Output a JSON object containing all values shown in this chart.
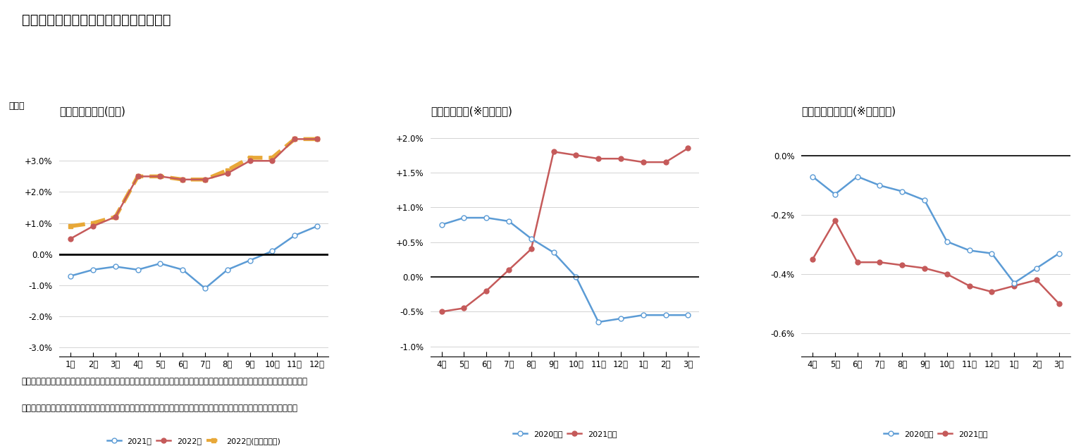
{
  "title": "図表５　年金額改定に関係する経済動向",
  "chart1": {
    "subtitle": "消費者物価指数(総合)",
    "ylabel": "前年比",
    "x_labels": [
      "1月",
      "2月",
      "3月",
      "4月",
      "5月",
      "6月",
      "7月",
      "8月",
      "9月",
      "10月",
      "11月",
      "12月"
    ],
    "ytick_labels": [
      "-3.0%",
      "-2.0%",
      "-1.0%",
      "0.0%",
      "+1.0%",
      "+2.0%",
      "+3.0%"
    ],
    "yticks": [
      -3.0,
      -2.0,
      -1.0,
      0.0,
      1.0,
      2.0,
      3.0
    ],
    "ylim_lo": -3.3,
    "ylim_hi": 4.3,
    "series_2021": [
      -0.7,
      -0.5,
      -0.4,
      -0.5,
      -0.3,
      -0.5,
      -1.1,
      -0.5,
      -0.2,
      0.1,
      0.6,
      0.9
    ],
    "series_2022": [
      0.5,
      0.9,
      1.2,
      2.5,
      2.5,
      2.4,
      2.4,
      2.6,
      3.0,
      3.0,
      3.7,
      3.7
    ],
    "series_forecast_x": [
      0,
      1,
      2,
      3,
      4,
      5,
      6,
      7,
      8,
      9,
      10,
      11
    ],
    "series_forecast_y": [
      0.9,
      1.0,
      1.2,
      2.5,
      2.5,
      2.4,
      2.4,
      2.7,
      3.1,
      3.1,
      3.7,
      3.7
    ],
    "color_2021": "#5B9BD5",
    "color_2022": "#C55A5A",
    "color_forecast": "#E8A838",
    "legend": [
      "2021年",
      "2022年",
      "2022年(弊社見通し)"
    ]
  },
  "chart2": {
    "subtitle": "標準報酬月額(※共済以外)",
    "x_labels": [
      "4月",
      "5月",
      "6月",
      "7月",
      "8月",
      "9月",
      "10月",
      "11月",
      "12月",
      "1月",
      "2月",
      "3月"
    ],
    "ytick_labels": [
      "-1.0%",
      "-0.5%",
      "0.0%",
      "+0.5%",
      "+1.0%",
      "+1.5%",
      "+2.0%"
    ],
    "yticks": [
      -1.0,
      -0.5,
      0.0,
      0.5,
      1.0,
      1.5,
      2.0
    ],
    "ylim_lo": -1.15,
    "ylim_hi": 2.25,
    "series_2020": [
      0.75,
      0.85,
      0.85,
      0.8,
      0.55,
      0.35,
      0.0,
      -0.65,
      -0.6,
      -0.55,
      -0.55,
      -0.55
    ],
    "series_2021": [
      -0.5,
      -0.45,
      -0.2,
      0.1,
      0.4,
      1.8,
      1.75,
      1.7,
      1.7,
      1.65,
      1.65,
      1.85
    ],
    "color_2020": "#5B9BD5",
    "color_2021": "#C55A5A",
    "legend": [
      "2020年度",
      "2021年度"
    ]
  },
  "chart3": {
    "subtitle": "公的年金加入者数(※共済以外)",
    "x_labels": [
      "4月",
      "5月",
      "6月",
      "7月",
      "8月",
      "9月",
      "10月",
      "11月",
      "12月",
      "1月",
      "2月",
      "3月"
    ],
    "ytick_labels": [
      "-0.6%",
      "-0.4%",
      "-0.2%",
      "0.0%"
    ],
    "yticks": [
      -0.6,
      -0.4,
      -0.2,
      0.0
    ],
    "ylim_lo": -0.68,
    "ylim_hi": 0.12,
    "series_2020": [
      -0.07,
      -0.13,
      -0.07,
      -0.1,
      -0.12,
      -0.15,
      -0.29,
      -0.32,
      -0.33,
      -0.43,
      -0.38,
      -0.33
    ],
    "series_2021": [
      -0.35,
      -0.22,
      -0.36,
      -0.36,
      -0.37,
      -0.38,
      -0.4,
      -0.44,
      -0.46,
      -0.44,
      -0.42,
      -0.5
    ],
    "color_2020": "#5B9BD5",
    "color_2021": "#C55A5A",
    "legend": [
      "2020年度",
      "2021年度"
    ]
  },
  "footnote1": "（注１）　年金額の改定には共済年金の標準報酬や加入者数も影響するが、月次の状況を把握できないため共済以外を参照した。",
  "footnote2": "（資料）　総務省統計局「消費者物価指数」、厚生労働省年金局「厚生年金保険・国民年金事業状況（事業月報）」（各月）"
}
